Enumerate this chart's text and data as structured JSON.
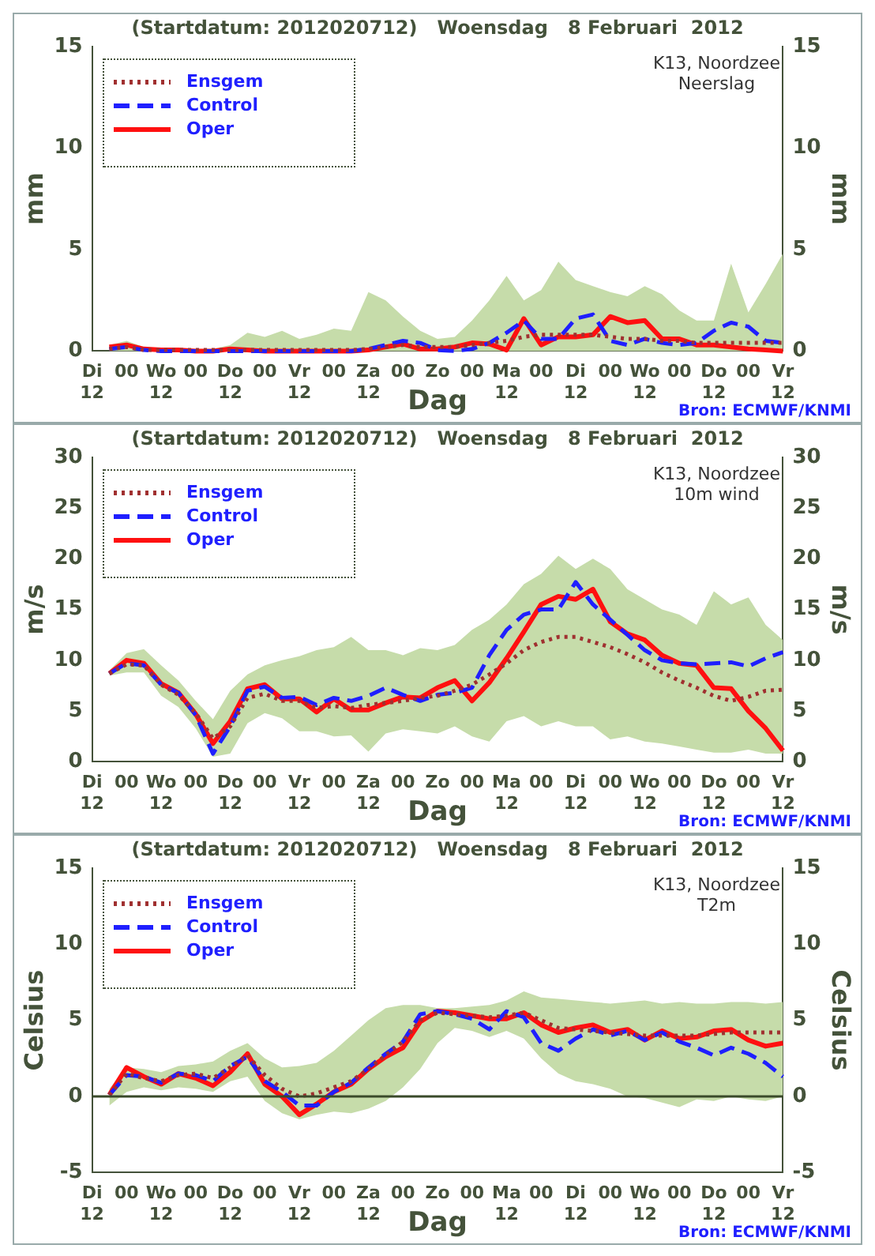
{
  "chart_data": [
    {
      "type": "line",
      "title": "(Startdatum: 2012020712)   Woensdag   8 Februari  2012",
      "xlabel": "Dag",
      "ylabel": "mm",
      "y2label": "mm",
      "annotations": [
        "K13, Noordzee",
        "Neerslag",
        "Bron: ECMWF/KNMI"
      ],
      "categories": [
        "Di\n12",
        null,
        "00",
        null,
        "Wo\n12",
        null,
        "00",
        null,
        "Do\n12",
        null,
        "00",
        null,
        "Vr\n12",
        null,
        "00",
        null,
        "Za\n12",
        null,
        "00",
        null,
        "Zo",
        null,
        "00",
        null,
        "Ma\n12",
        null,
        "00",
        null,
        "Di\n12",
        null,
        "00",
        null,
        "Wo\n12",
        null,
        "00",
        null,
        "Do\n12",
        null,
        "00",
        null,
        "Vr\n12"
      ],
      "ylim": [
        0,
        15
      ],
      "yticks": [
        0,
        5,
        10,
        15
      ],
      "y2lim": [
        0,
        15
      ],
      "y2ticks": [
        0,
        5,
        10,
        15
      ],
      "grid": false,
      "legend": "top left",
      "marker": "none",
      "series": [
        {
          "name": "Ensgem",
          "color": "#a03030",
          "line_style": "dotted",
          "values": [
            null,
            0.1,
            0.2,
            0.05,
            0.05,
            0.05,
            0.05,
            0.05,
            0.05,
            0.05,
            0.05,
            0.05,
            0.05,
            0.05,
            0.05,
            0.05,
            0.1,
            0.2,
            0.3,
            0.2,
            0.2,
            0.2,
            0.3,
            0.4,
            0.5,
            0.7,
            0.8,
            0.8,
            0.8,
            0.8,
            0.7,
            0.6,
            0.6,
            0.5,
            0.5,
            0.4,
            0.4,
            0.4,
            0.4,
            0.4,
            0.4
          ],
          "lower": [
            null,
            0,
            0,
            0,
            0,
            0,
            0,
            0,
            0,
            0,
            0,
            0,
            0,
            0,
            0,
            0,
            0,
            0,
            0,
            0,
            0,
            0,
            0,
            0,
            0,
            0,
            0,
            0,
            0,
            0,
            0,
            0,
            0,
            0,
            0,
            0,
            0,
            0,
            0,
            0,
            0
          ],
          "upper": [
            null,
            0.3,
            0.5,
            0.2,
            0.1,
            0.1,
            0.1,
            0.1,
            0.3,
            0.9,
            0.7,
            1.0,
            0.6,
            0.8,
            1.1,
            1.0,
            2.9,
            2.5,
            1.7,
            1.0,
            0.6,
            0.7,
            1.5,
            2.5,
            3.7,
            2.5,
            3.0,
            4.4,
            3.5,
            3.2,
            2.9,
            2.7,
            3.2,
            2.8,
            2.0,
            1.5,
            1.5,
            4.3,
            1.9,
            3.3,
            4.8
          ]
        },
        {
          "name": "Control",
          "color": "#1f1fff",
          "line_style": "dashed",
          "values": [
            null,
            0.1,
            0.2,
            0.05,
            0,
            0,
            0,
            0,
            0,
            0,
            0,
            0,
            0,
            0,
            0,
            0,
            0.1,
            0.3,
            0.5,
            0.4,
            0.05,
            0,
            0.1,
            0.4,
            0.9,
            1.5,
            0.6,
            0.6,
            1.6,
            1.8,
            0.5,
            0.3,
            0.6,
            0.4,
            0.3,
            0.4,
            1.0,
            1.4,
            1.2,
            0.5,
            0.4
          ]
        },
        {
          "name": "Oper",
          "color": "#ff1010",
          "line_style": "solid",
          "values": [
            null,
            0.2,
            0.3,
            0.1,
            0.05,
            0.05,
            0,
            0,
            0.1,
            0.05,
            0,
            0,
            0,
            0,
            0,
            0,
            0.05,
            0.2,
            0.35,
            0.1,
            0.1,
            0.2,
            0.4,
            0.35,
            0.05,
            1.6,
            0.3,
            0.7,
            0.7,
            0.8,
            1.7,
            1.4,
            1.5,
            0.6,
            0.6,
            0.3,
            0.3,
            0.2,
            0.1,
            0.05,
            0
          ]
        }
      ]
    },
    {
      "type": "line",
      "title": "(Startdatum: 2012020712)   Woensdag   8 Februari  2012",
      "xlabel": "Dag",
      "ylabel": "m/s",
      "y2label": "m/s",
      "annotations": [
        "K13, Noordzee",
        "10m wind",
        "Bron: ECMWF/KNMI"
      ],
      "categories": [
        "Di\n12",
        null,
        "00",
        null,
        "Wo\n12",
        null,
        "00",
        null,
        "Do\n12",
        null,
        "00",
        null,
        "Vr\n12",
        null,
        "00",
        null,
        "Za\n12",
        null,
        "00",
        null,
        "Zo",
        null,
        "00",
        null,
        "Ma\n12",
        null,
        "00",
        null,
        "Di\n12",
        null,
        "00",
        null,
        "Wo\n12",
        null,
        "00",
        null,
        "Do\n12",
        null,
        "00",
        null,
        "Vr\n12"
      ],
      "ylim": [
        0,
        30
      ],
      "yticks": [
        0,
        5,
        10,
        15,
        20,
        25,
        30
      ],
      "y2lim": [
        0,
        30
      ],
      "y2ticks": [
        0,
        5,
        10,
        15,
        20,
        25,
        30
      ],
      "grid": false,
      "legend": "top left",
      "marker": "none",
      "series": [
        {
          "name": "Ensgem",
          "color": "#a03030",
          "line_style": "dotted",
          "values": [
            null,
            8.7,
            9.6,
            9.5,
            7.6,
            6.6,
            4.8,
            2.3,
            3.5,
            6.3,
            6.7,
            6.0,
            6.0,
            5.3,
            5.5,
            5.3,
            5.6,
            5.8,
            6.0,
            6.3,
            6.5,
            7.0,
            7.6,
            8.6,
            9.7,
            11.0,
            11.8,
            12.3,
            12.3,
            11.8,
            11.3,
            10.6,
            9.8,
            8.8,
            8.0,
            7.3,
            6.5,
            6.0,
            6.4,
            7.0,
            7.1
          ],
          "lower": [
            null,
            8.5,
            8.8,
            8.8,
            6.5,
            5.4,
            3.3,
            0.5,
            0.8,
            3.8,
            4.8,
            4.3,
            3.0,
            3.0,
            2.5,
            2.6,
            1.0,
            2.8,
            3.2,
            3.0,
            2.8,
            3.5,
            2.5,
            2.0,
            4.0,
            4.5,
            3.5,
            4.0,
            3.5,
            3.5,
            2.2,
            2.5,
            2.0,
            1.8,
            1.5,
            1.2,
            0.9,
            0.9,
            1.2,
            0.8,
            0.8
          ],
          "upper": [
            null,
            9.0,
            10.7,
            11.1,
            9.5,
            8.0,
            6.0,
            4.2,
            7.0,
            8.6,
            9.5,
            10.0,
            10.4,
            11.0,
            11.3,
            12.3,
            11.0,
            11.0,
            10.5,
            11.2,
            11.0,
            11.5,
            13.0,
            14.0,
            15.5,
            17.5,
            18.5,
            20.3,
            19.0,
            20.0,
            19.0,
            17.0,
            16.0,
            15.0,
            14.5,
            13.5,
            16.8,
            15.5,
            16.2,
            13.5,
            12.0
          ]
        },
        {
          "name": "Control",
          "color": "#1f1fff",
          "line_style": "dashed",
          "values": [
            null,
            8.7,
            9.7,
            9.5,
            7.6,
            6.8,
            4.6,
            0.8,
            3.5,
            7.0,
            7.4,
            6.3,
            6.4,
            5.6,
            6.3,
            6.0,
            6.5,
            7.3,
            6.6,
            6.0,
            6.6,
            6.8,
            7.3,
            10.5,
            13.0,
            14.5,
            15.0,
            15.0,
            17.7,
            15.5,
            14.0,
            12.5,
            11.0,
            10.0,
            9.7,
            9.6,
            9.7,
            9.8,
            9.4,
            10.2,
            10.8
          ]
        },
        {
          "name": "Oper",
          "color": "#ff1010",
          "line_style": "solid",
          "values": [
            null,
            8.7,
            10.0,
            9.7,
            7.7,
            6.8,
            4.7,
            1.8,
            4.0,
            7.2,
            7.6,
            6.2,
            6.2,
            4.9,
            6.2,
            5.1,
            5.1,
            5.8,
            6.4,
            6.3,
            7.3,
            8.0,
            6.0,
            7.8,
            10.2,
            12.8,
            15.5,
            16.3,
            16.0,
            17.0,
            13.8,
            12.6,
            12.0,
            10.5,
            9.7,
            9.5,
            7.3,
            7.2,
            5.0,
            3.3,
            1.1
          ]
        }
      ]
    },
    {
      "type": "line",
      "title": "(Startdatum: 2012020712)   Woensdag   8 Februari  2012",
      "xlabel": "Dag",
      "ylabel": "Celsius",
      "y2label": "Celsius",
      "annotations": [
        "K13, Noordzee",
        "T2m",
        "Bron: ECMWF/KNMI"
      ],
      "categories": [
        "Di\n12",
        null,
        "00",
        null,
        "Wo\n12",
        null,
        "00",
        null,
        "Do\n12",
        null,
        "00",
        null,
        "Vr\n12",
        null,
        "00",
        null,
        "Za\n12",
        null,
        "00",
        null,
        "Zo",
        null,
        "00",
        null,
        "Ma\n12",
        null,
        "00",
        null,
        "Di\n12",
        null,
        "00",
        null,
        "Wo\n12",
        null,
        "00",
        null,
        "Do\n12",
        null,
        "00",
        null,
        "Vr\n12"
      ],
      "ylim": [
        -5,
        15
      ],
      "yticks": [
        -5,
        0,
        5,
        10,
        15
      ],
      "y2lim": [
        -5,
        15
      ],
      "y2ticks": [
        -5,
        0,
        5,
        10,
        15
      ],
      "grid": false,
      "legend": "top left",
      "marker": "none",
      "ref_lines": [
        {
          "axis": "y",
          "value": 0,
          "color": "#3a4a2a"
        }
      ],
      "series": [
        {
          "name": "Ensgem",
          "color": "#a03030",
          "line_style": "dotted",
          "values": [
            null,
            0.1,
            1.5,
            1.2,
            1.0,
            1.4,
            1.5,
            1.2,
            1.9,
            2.7,
            1.4,
            0.5,
            0.0,
            0.2,
            0.6,
            1.0,
            1.8,
            2.7,
            3.6,
            5.0,
            5.5,
            5.4,
            5.3,
            5.2,
            5.3,
            5.5,
            5.0,
            4.5,
            4.4,
            4.3,
            4.2,
            4.1,
            4.0,
            4.0,
            4.0,
            4.0,
            4.1,
            4.2,
            4.2,
            4.2,
            4.2
          ],
          "lower": [
            null,
            -0.6,
            0.3,
            0.6,
            0.4,
            0.6,
            0.5,
            0.3,
            1.0,
            1.3,
            -0.3,
            -1.1,
            -1.5,
            -1.2,
            -1.0,
            -1.1,
            -0.8,
            -0.3,
            0.6,
            1.8,
            3.5,
            4.5,
            4.3,
            3.9,
            4.3,
            3.8,
            2.5,
            1.5,
            1.0,
            0.8,
            0.5,
            0.0,
            -0.1,
            -0.4,
            -0.7,
            -0.2,
            -0.3,
            0.0,
            -0.2,
            -0.3,
            0.0
          ],
          "upper": [
            null,
            0.5,
            1.9,
            1.8,
            1.6,
            2.0,
            2.1,
            2.3,
            3.0,
            3.5,
            2.5,
            1.9,
            2.0,
            2.2,
            3.0,
            4.0,
            5.0,
            5.8,
            6.0,
            6.0,
            5.8,
            5.8,
            5.9,
            6.0,
            6.3,
            6.9,
            6.5,
            6.4,
            6.3,
            6.2,
            6.1,
            6.2,
            6.3,
            6.1,
            6.2,
            6.1,
            6.1,
            6.2,
            6.2,
            6.1,
            6.2
          ]
        },
        {
          "name": "Control",
          "color": "#1f1fff",
          "line_style": "dashed",
          "values": [
            null,
            0.1,
            1.4,
            1.3,
            0.9,
            1.5,
            1.4,
            1.0,
            2.0,
            2.6,
            1.0,
            0.3,
            -0.6,
            -0.6,
            0.3,
            0.9,
            1.9,
            2.8,
            3.6,
            5.4,
            5.6,
            5.4,
            5.1,
            4.4,
            5.6,
            5.2,
            3.5,
            3.0,
            3.8,
            4.4,
            4.0,
            4.3,
            3.7,
            4.2,
            3.6,
            3.2,
            2.7,
            3.2,
            2.8,
            2.2,
            1.3
          ]
        },
        {
          "name": "Oper",
          "color": "#ff1010",
          "line_style": "solid",
          "values": [
            null,
            0.1,
            1.9,
            1.3,
            0.8,
            1.5,
            1.2,
            0.7,
            1.6,
            2.8,
            0.8,
            0.0,
            -1.2,
            -0.5,
            0.3,
            0.8,
            1.8,
            2.6,
            3.2,
            4.9,
            5.6,
            5.5,
            5.3,
            5.1,
            5.1,
            5.5,
            4.7,
            4.2,
            4.5,
            4.7,
            4.2,
            4.4,
            3.7,
            4.3,
            3.8,
            3.9,
            4.3,
            4.4,
            3.7,
            3.3,
            3.5
          ]
        }
      ]
    }
  ]
}
